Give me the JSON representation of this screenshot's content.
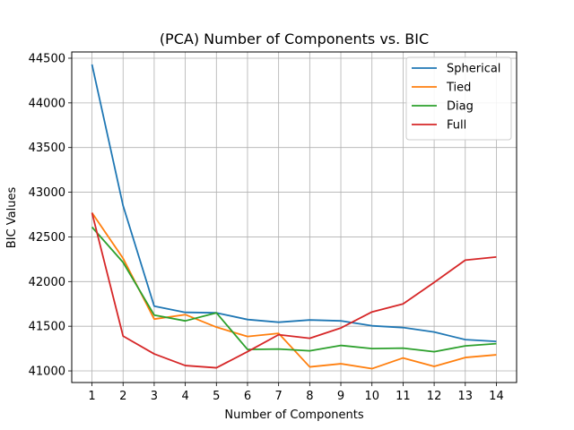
{
  "chart_data": {
    "type": "line",
    "title": "(PCA) Number of Components vs. BIC",
    "xlabel": "Number of Components",
    "ylabel": "BIC Values",
    "x": [
      1,
      2,
      3,
      4,
      5,
      6,
      7,
      8,
      9,
      10,
      11,
      12,
      13,
      14
    ],
    "xticks": [
      "1",
      "2",
      "3",
      "4",
      "5",
      "6",
      "7",
      "8",
      "9",
      "10",
      "11",
      "12",
      "13",
      "14"
    ],
    "yticks": [
      41000,
      41500,
      42000,
      42500,
      43000,
      43500,
      44000,
      44500
    ],
    "xlim": [
      0.35,
      14.65
    ],
    "ylim": [
      40870,
      44570
    ],
    "grid": true,
    "legend_position": "top-right",
    "series": [
      {
        "name": "Spherical",
        "color": "#1f77b4",
        "values": [
          44430,
          42850,
          41725,
          41655,
          41650,
          41575,
          41545,
          41570,
          41560,
          41505,
          41485,
          41435,
          41350,
          41330
        ]
      },
      {
        "name": "Tied",
        "color": "#ff7f0e",
        "values": [
          42770,
          42260,
          41580,
          41630,
          41490,
          41385,
          41420,
          41045,
          41080,
          41025,
          41145,
          41050,
          41150,
          41180
        ]
      },
      {
        "name": "Diag",
        "color": "#2ca02c",
        "values": [
          42610,
          42215,
          41625,
          41560,
          41650,
          41240,
          41245,
          41225,
          41285,
          41250,
          41255,
          41215,
          41280,
          41305
        ]
      },
      {
        "name": "Full",
        "color": "#d62728",
        "values": [
          42770,
          41390,
          41190,
          41060,
          41035,
          41215,
          41405,
          41365,
          41480,
          41660,
          41750,
          41990,
          42240,
          42275
        ]
      }
    ]
  }
}
